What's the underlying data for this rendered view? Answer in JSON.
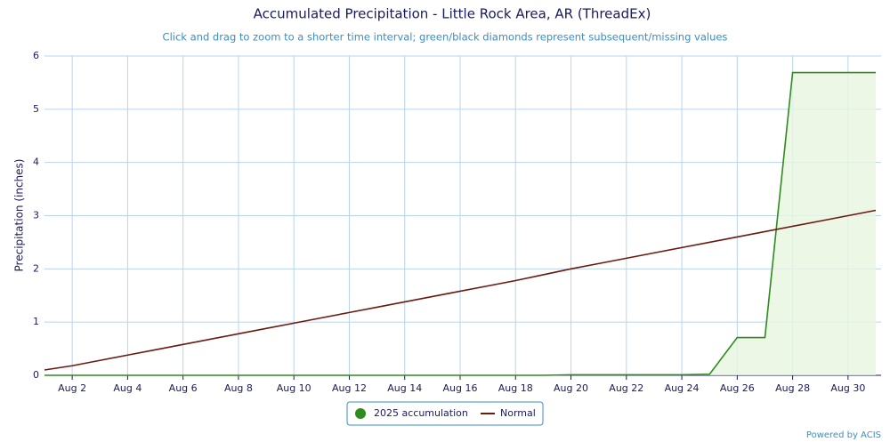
{
  "chart_data": {
    "type": "line",
    "title": "Accumulated Precipitation - Little Rock Area, AR (ThreadEx)",
    "subtitle": "Click and drag to zoom to a shorter time interval; green/black diamonds represent subsequent/missing values",
    "y_label": "Precipitation (inches)",
    "credit": "Powered by ACIS",
    "categories": [
      null,
      "Aug 2",
      null,
      "Aug 4",
      null,
      "Aug 6",
      null,
      "Aug 8",
      null,
      "Aug 10",
      null,
      "Aug 12",
      null,
      "Aug 14",
      null,
      "Aug 16",
      null,
      "Aug 18",
      null,
      "Aug 20",
      null,
      "Aug 22",
      null,
      "Aug 24",
      null,
      "Aug 26",
      null,
      "Aug 28",
      null,
      "Aug 30",
      null
    ],
    "series": [
      {
        "name": "2025 accumulation",
        "color": "#2e8b1e",
        "fill": "#e8f5e0",
        "values": [
          0,
          0,
          0,
          0,
          0,
          0,
          0,
          0,
          0,
          0,
          0,
          0,
          0,
          0,
          0,
          0,
          0,
          0,
          0,
          0.01,
          0.01,
          0.01,
          0.01,
          0.01,
          0.02,
          0.71,
          0.71,
          5.69,
          5.69,
          5.69,
          5.69
        ]
      },
      {
        "name": "Normal",
        "color": "#6b1a10",
        "values": [
          0.1,
          0.18,
          0.28,
          0.38,
          0.48,
          0.58,
          0.68,
          0.78,
          0.88,
          0.98,
          1.08,
          1.18,
          1.28,
          1.38,
          1.48,
          1.58,
          1.68,
          1.78,
          1.89,
          2.0,
          2.1,
          2.2,
          2.3,
          2.4,
          2.5,
          2.6,
          2.7,
          2.8,
          2.9,
          3.0,
          3.1
        ]
      }
    ],
    "ylim": [
      0,
      6
    ],
    "yticks": [
      0,
      1,
      2,
      3,
      4,
      5,
      6
    ],
    "grid": true
  }
}
